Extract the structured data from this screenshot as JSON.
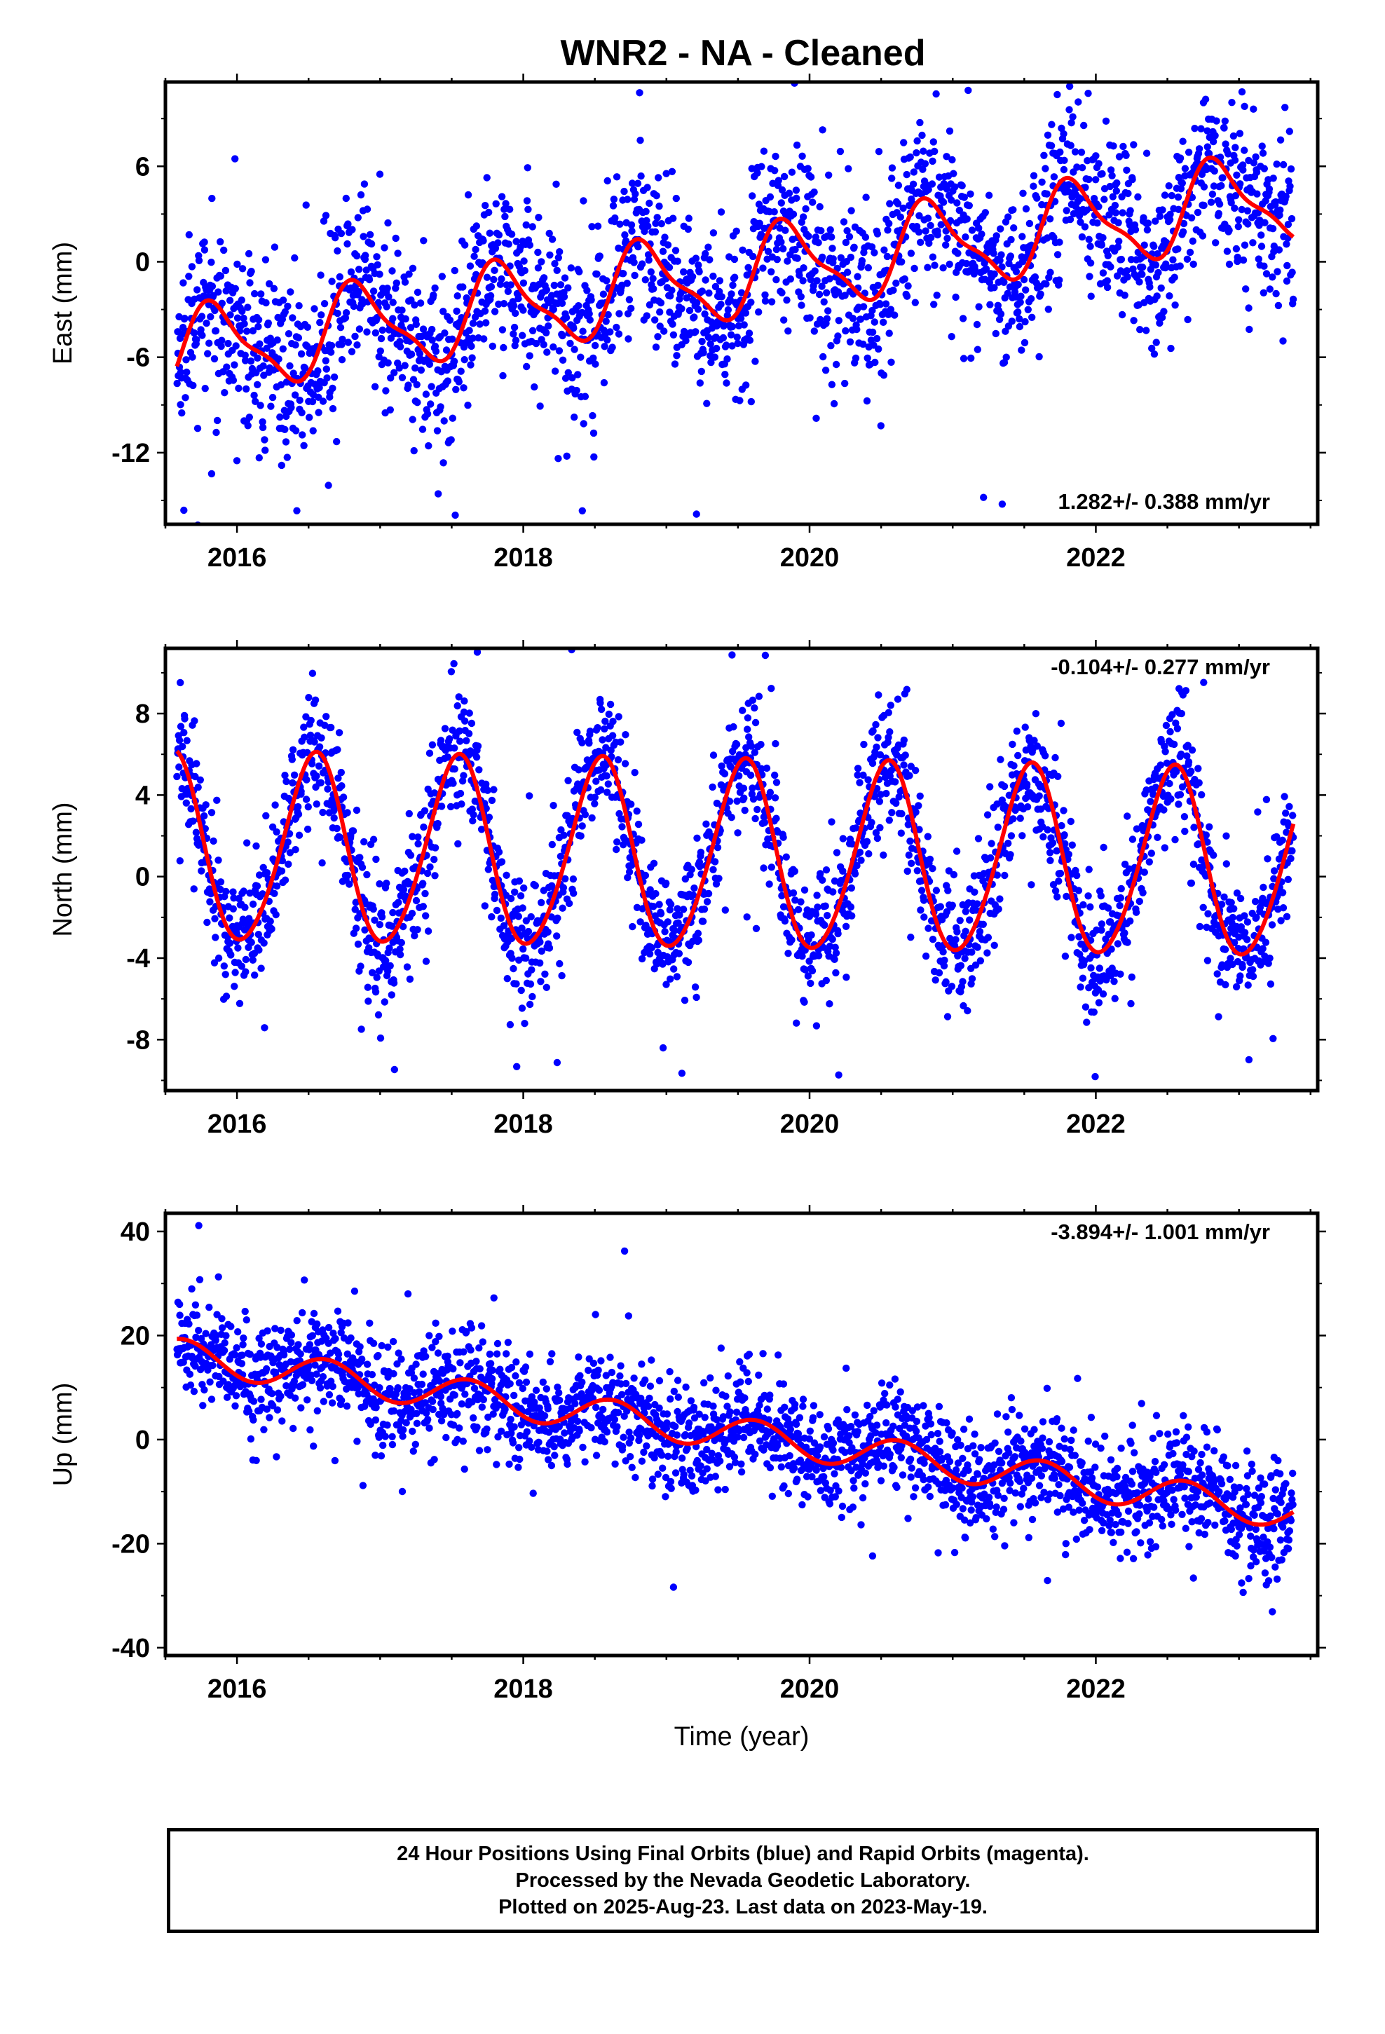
{
  "title": "WNR2  - NA - Cleaned",
  "footer": {
    "line1": "24 Hour Positions Using Final Orbits (blue) and Rapid Orbits (magenta).",
    "line2": "Processed by the Nevada Geodetic Laboratory.",
    "line3": "Plotted on 2025-Aug-23. Last data on 2023-May-19."
  },
  "colors": {
    "points": "#0000ff",
    "model": "#ff0000",
    "frame": "#000000"
  },
  "chart_data": [
    {
      "type": "scatter",
      "component": "east",
      "ylabel": "East (mm)",
      "xlabel": "",
      "xlim": [
        2015.5,
        2023.55
      ],
      "ylim": [
        -16.5,
        11.3
      ],
      "x_ticks": [
        2016,
        2018,
        2020,
        2022
      ],
      "y_ticks": [
        -12,
        -6,
        0,
        6
      ],
      "rate_text": "1.282+/- 0.388 mm/yr",
      "rate_position": "bottom-right",
      "model": {
        "t0": 2019.5,
        "offset": -0.8,
        "rate": 1.282,
        "annual_amp": 2.6,
        "annual_phase_year": 2015.85,
        "semiannual_amp": 0.8,
        "semiannual_phase_year": 2015.75
      },
      "scatter": {
        "first_epoch": 2015.58,
        "last_epoch": 2023.38,
        "count": 2300,
        "noise_sd_mm": 2.6,
        "outlier_sd_mm": 5.0
      }
    },
    {
      "type": "scatter",
      "component": "north",
      "ylabel": "North (mm)",
      "xlabel": "",
      "xlim": [
        2015.5,
        2023.55
      ],
      "ylim": [
        -10.5,
        11.2
      ],
      "x_ticks": [
        2016,
        2018,
        2020,
        2022
      ],
      "y_ticks": [
        -8,
        -4,
        0,
        4,
        8
      ],
      "rate_text": "-0.104+/- 0.277 mm/yr",
      "rate_position": "top-right",
      "model": {
        "t0": 2019.5,
        "offset": 0.9,
        "rate": -0.104,
        "annual_amp": 4.6,
        "annual_phase_year": 2015.54,
        "semiannual_amp": 0.4,
        "semiannual_phase_year": 2015.6
      },
      "scatter": {
        "first_epoch": 2015.58,
        "last_epoch": 2023.38,
        "count": 2300,
        "noise_sd_mm": 1.5,
        "outlier_sd_mm": 3.2
      }
    },
    {
      "type": "scatter",
      "component": "up",
      "ylabel": "Up (mm)",
      "xlabel": "Time (year)",
      "xlim": [
        2015.5,
        2023.55
      ],
      "ylim": [
        -41.5,
        43.5
      ],
      "x_ticks": [
        2016,
        2018,
        2020,
        2022
      ],
      "y_ticks": [
        -40,
        -20,
        0,
        20,
        40
      ],
      "rate_text": "-3.894+/- 1.001 mm/yr",
      "rate_position": "top-right",
      "model": {
        "t0": 2019.5,
        "offset": 1.0,
        "rate": -3.894,
        "annual_amp": 3.2,
        "annual_phase_year": 2015.62,
        "semiannual_amp": 0.0,
        "semiannual_phase_year": 2015.6
      },
      "scatter": {
        "first_epoch": 2015.58,
        "last_epoch": 2023.38,
        "count": 2300,
        "noise_sd_mm": 5.0,
        "outlier_sd_mm": 9.0
      }
    }
  ]
}
